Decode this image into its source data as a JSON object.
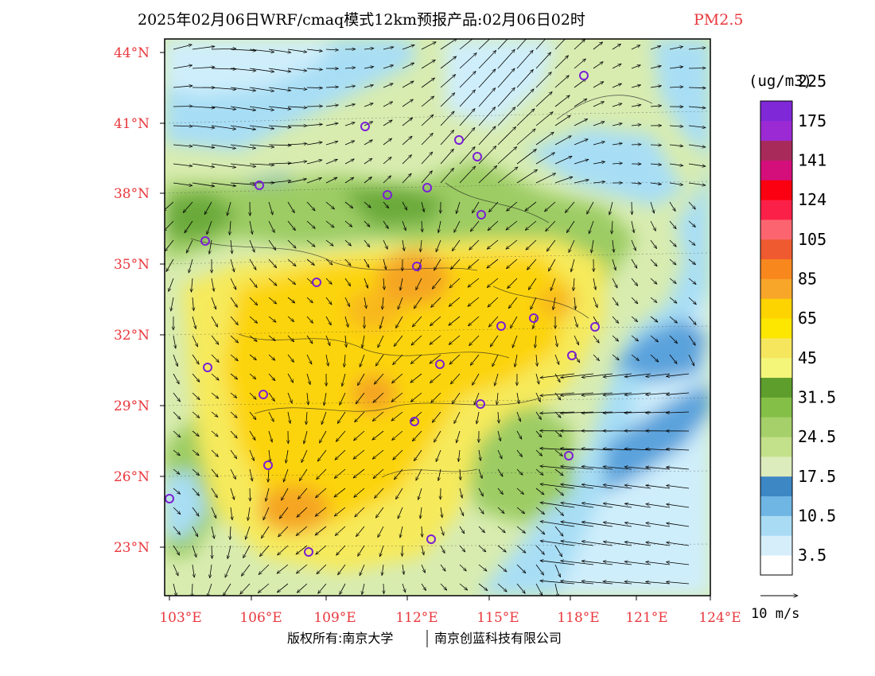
{
  "title": {
    "main": "2025年02月06日WRF/cmaq模式12km预报产品:02月06日02时",
    "variable": "PM2.5"
  },
  "map": {
    "lat_labels": [
      "44°N",
      "41°N",
      "38°N",
      "35°N",
      "32°N",
      "29°N",
      "26°N",
      "23°N"
    ],
    "lon_labels": [
      "103°E",
      "106°E",
      "109°E",
      "112°E",
      "115°E",
      "118°E",
      "121°E",
      "124°E"
    ],
    "field_colors": {
      "low_cyan": "#cfeefb",
      "light_blue": "#a8def5",
      "blue": "#5aa2dc",
      "pale_green": "#d8ecb0",
      "green": "#9ccc64",
      "dark_green": "#6aaa3a",
      "yellow": "#f6ea5c",
      "gold": "#fcd410",
      "orange": "#f5a524"
    }
  },
  "colorbar": {
    "unit": "(ug/m3)",
    "colors": [
      "#ffffff",
      "#d6eefa",
      "#a9dcf4",
      "#6fb6e4",
      "#3d87c4",
      "#dcecbc",
      "#c3e08a",
      "#a5d06a",
      "#84bf48",
      "#5e9e2c",
      "#f4f67a",
      "#f6e65e",
      "#fde600",
      "#fdd300",
      "#f8a62a",
      "#f8881e",
      "#ef5a30",
      "#fc6570",
      "#fb2048",
      "#fb0010",
      "#d40e7a",
      "#a82a5a",
      "#9c2ad4",
      "#7f28d8"
    ],
    "tick_labels": [
      "3.5",
      "10.5",
      "17.5",
      "24.5",
      "31.5",
      "45",
      "65",
      "85",
      "105",
      "124",
      "141",
      "175",
      "225"
    ]
  },
  "vector_key": {
    "label": "10 m/s"
  },
  "copyright": {
    "left": "版权所有:南京大学",
    "right": "南京创蓝科技有限公司"
  }
}
